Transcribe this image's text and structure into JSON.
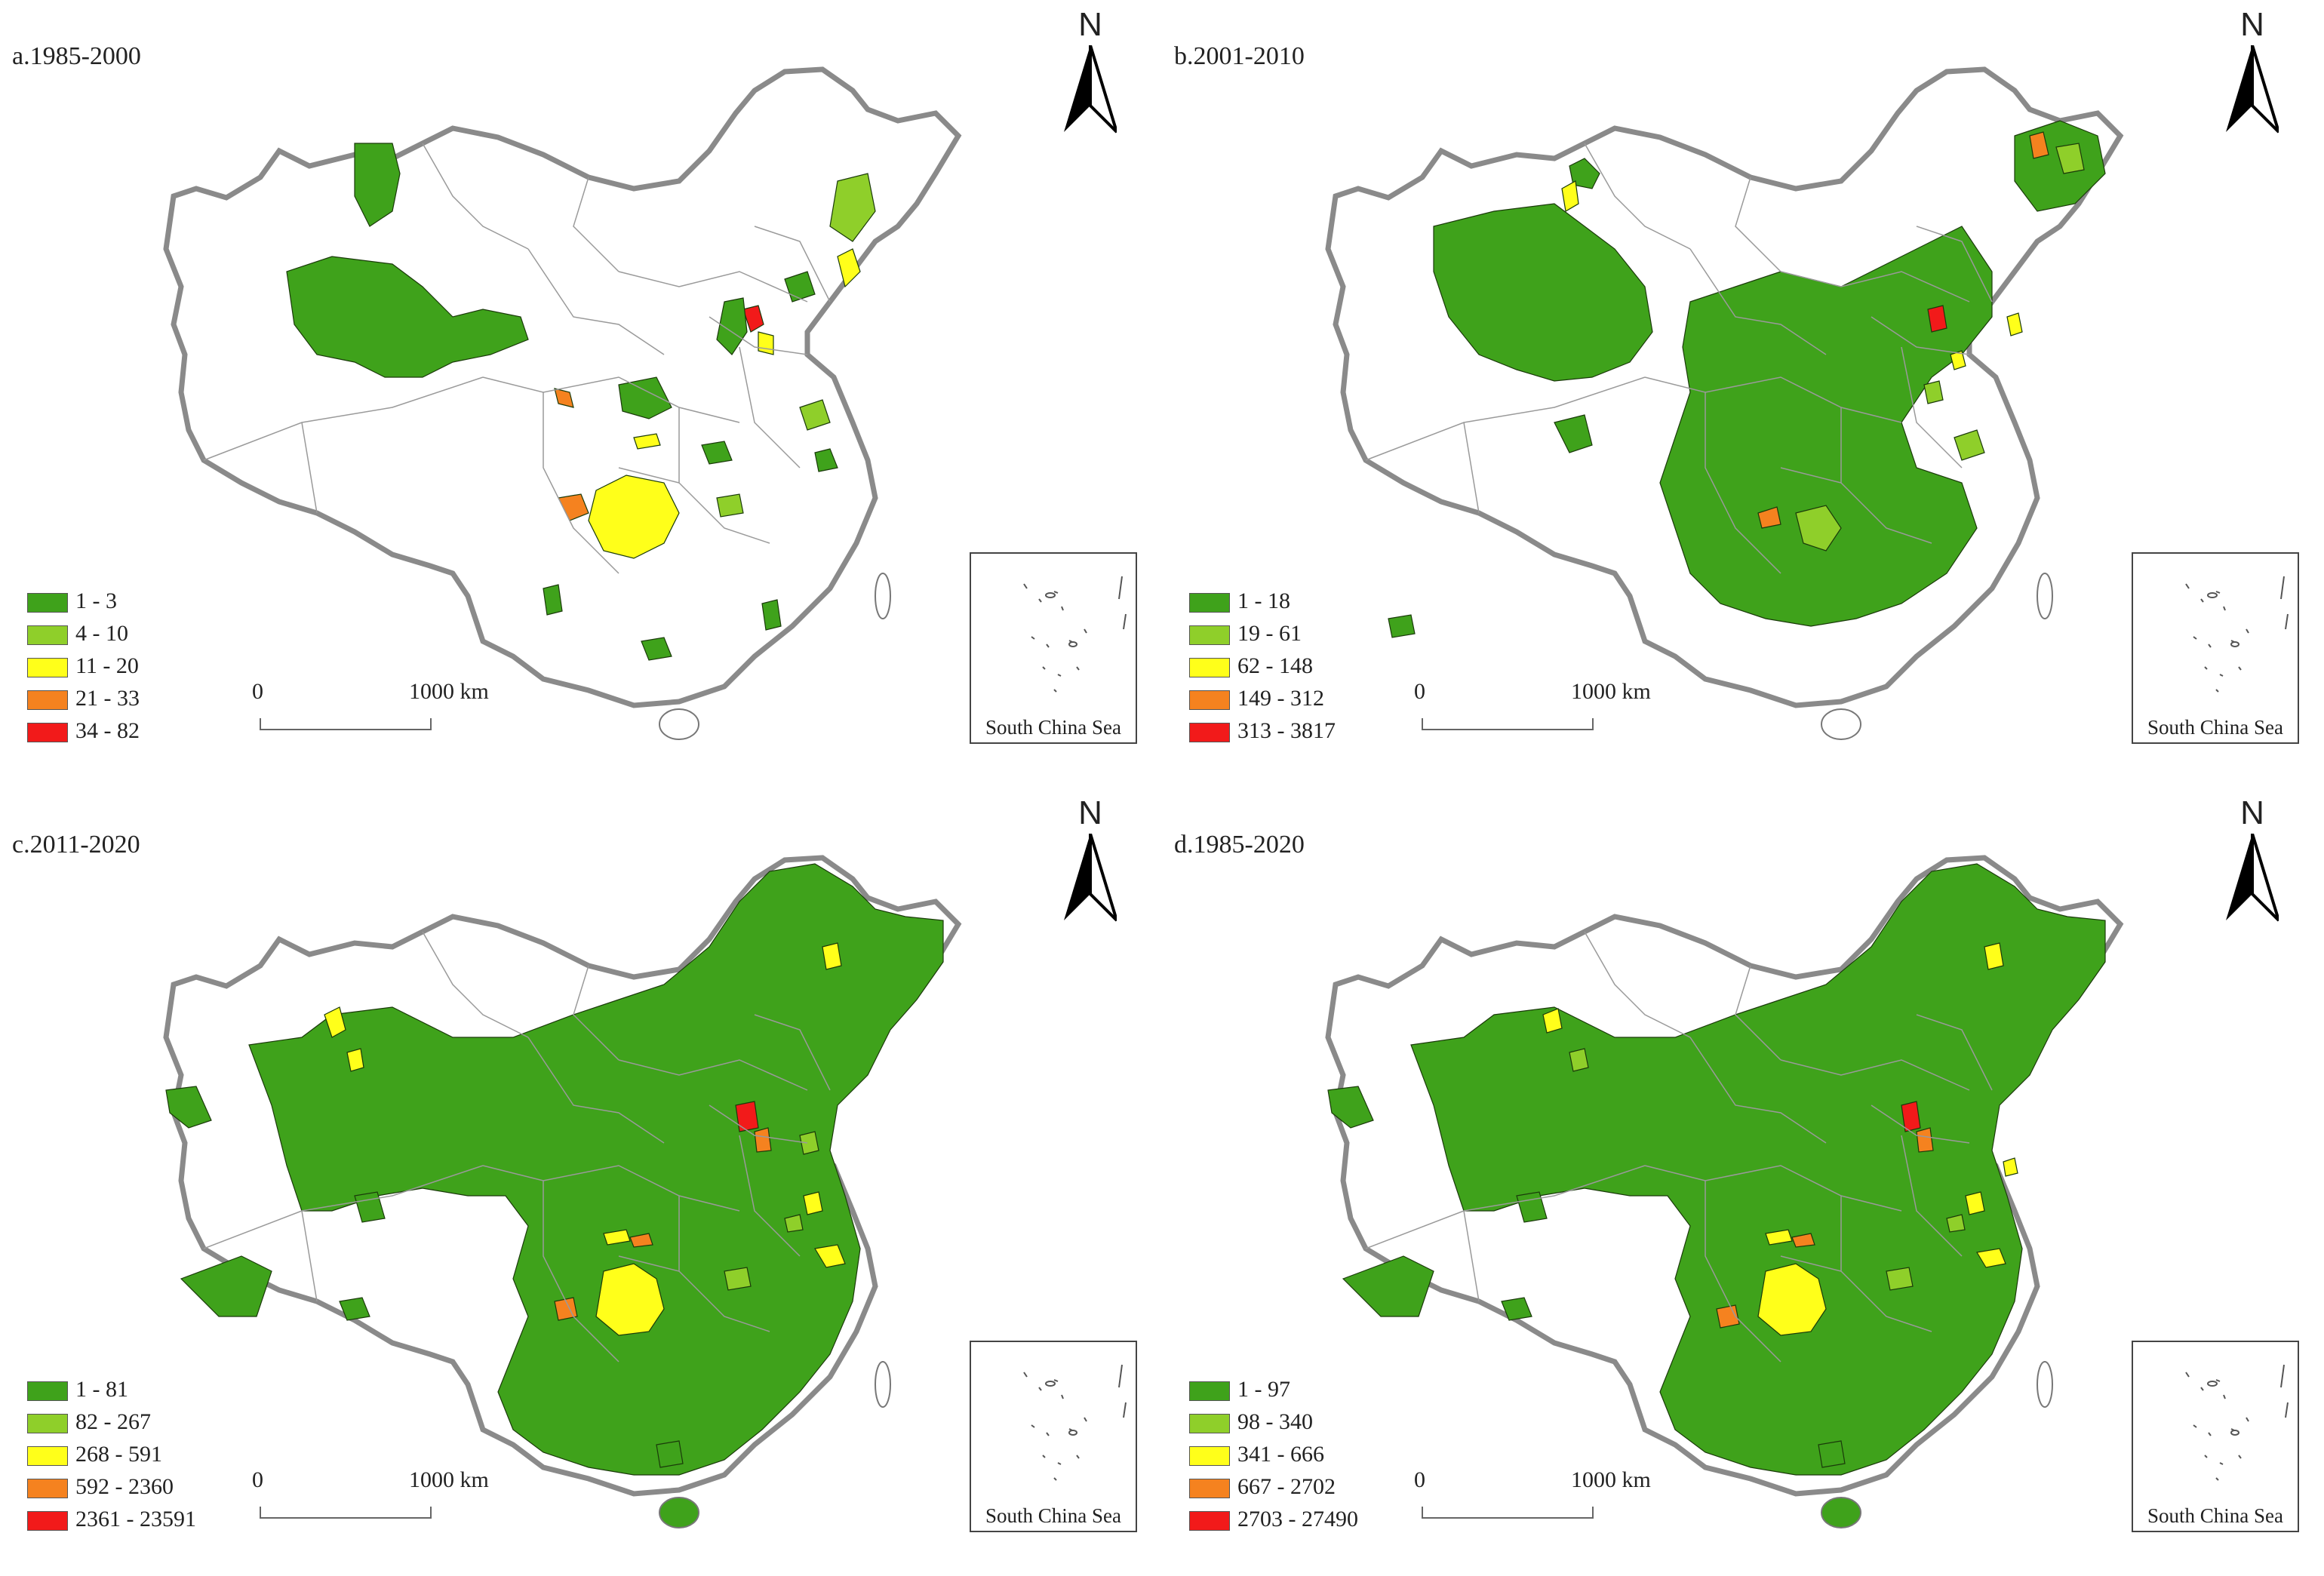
{
  "colors": {
    "class1": "#3fa21b",
    "class2": "#8fcf2a",
    "class3": "#ffff1a",
    "class4": "#f5821f",
    "class5": "#f21a1a",
    "unshaded": "#ffffff",
    "border": "#8a8a8a"
  },
  "north_label": "N",
  "inset_label": "South China Sea",
  "scale": {
    "start": "0",
    "end": "1000 km"
  },
  "panels": [
    {
      "title": "a.1985-2000",
      "legend": [
        "1 - 3",
        "4 - 10",
        "11 - 20",
        "21 - 33",
        "34 - 82"
      ]
    },
    {
      "title": "b.2001-2010",
      "legend": [
        "1 - 18",
        "19 - 61",
        "62 - 148",
        "149 - 312",
        "313 - 3817"
      ]
    },
    {
      "title": "c.2011-2020",
      "legend": [
        "1 - 81",
        "82 - 267",
        "268 - 591",
        "592 - 2360",
        "2361 - 23591"
      ]
    },
    {
      "title": "d.1985-2020",
      "legend": [
        "1 - 97",
        "98 - 340",
        "341 - 666",
        "667 - 2702",
        "2703 - 27490"
      ]
    }
  ]
}
